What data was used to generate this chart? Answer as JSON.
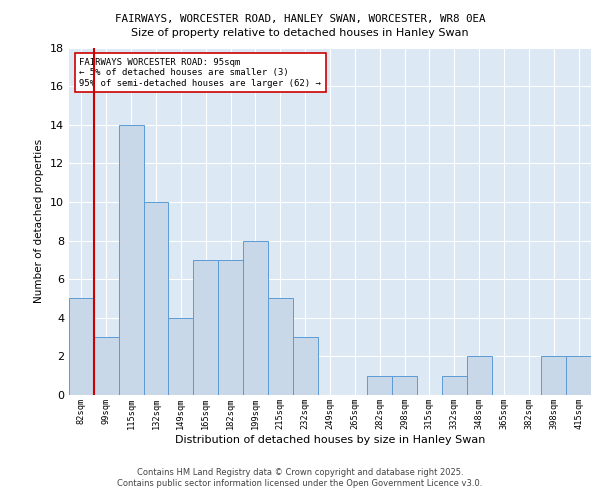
{
  "title1": "FAIRWAYS, WORCESTER ROAD, HANLEY SWAN, WORCESTER, WR8 0EA",
  "title2": "Size of property relative to detached houses in Hanley Swan",
  "xlabel": "Distribution of detached houses by size in Hanley Swan",
  "ylabel": "Number of detached properties",
  "categories": [
    "82sqm",
    "99sqm",
    "115sqm",
    "132sqm",
    "149sqm",
    "165sqm",
    "182sqm",
    "199sqm",
    "215sqm",
    "232sqm",
    "249sqm",
    "265sqm",
    "282sqm",
    "298sqm",
    "315sqm",
    "332sqm",
    "348sqm",
    "365sqm",
    "382sqm",
    "398sqm",
    "415sqm"
  ],
  "values": [
    5,
    3,
    14,
    10,
    4,
    7,
    7,
    8,
    5,
    3,
    0,
    0,
    1,
    1,
    0,
    1,
    2,
    0,
    0,
    2,
    2
  ],
  "bar_color": "#c8d8e8",
  "bar_edge_color": "#5b9bd5",
  "subject_line_color": "#cc0000",
  "annotation_text": "FAIRWAYS WORCESTER ROAD: 95sqm\n← 5% of detached houses are smaller (3)\n95% of semi-detached houses are larger (62) →",
  "footer_text": "Contains HM Land Registry data © Crown copyright and database right 2025.\nContains public sector information licensed under the Open Government Licence v3.0.",
  "ylim": [
    0,
    18
  ],
  "plot_background_color": "#dce9f5"
}
